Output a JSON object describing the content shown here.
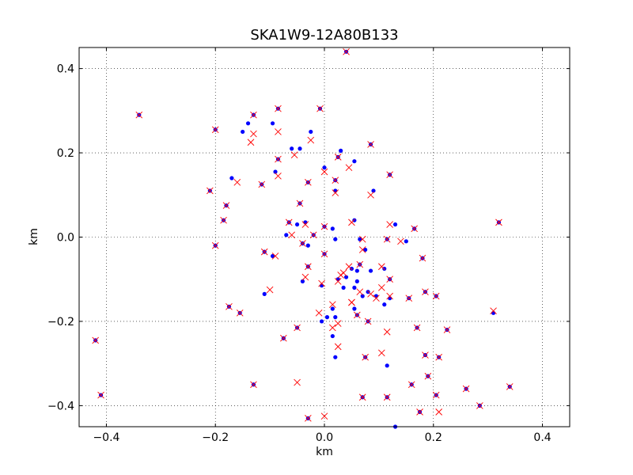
{
  "chart_data": {
    "type": "scatter",
    "title": "SKA1W9-12A80B133",
    "xlabel": "km",
    "ylabel": "km",
    "xlim": [
      -0.45,
      0.45
    ],
    "ylim": [
      -0.45,
      0.45
    ],
    "xticks": [
      "−0.4",
      "−0.2",
      "0.0",
      "0.2",
      "0.4"
    ],
    "yticks": [
      "0.4",
      "0.2",
      "0.0",
      "−0.2",
      "−0.4"
    ],
    "xtick_values": [
      -0.4,
      -0.2,
      0.0,
      0.2,
      0.4
    ],
    "ytick_values": [
      0.4,
      0.2,
      0.0,
      -0.2,
      -0.4
    ],
    "grid": true,
    "colors": {
      "series_a": "#0000ff",
      "series_b": "#ff0000",
      "axes": "#000000"
    },
    "series": [
      {
        "marker": "dot",
        "color": "#0000ff",
        "points": [
          [
            0.04,
            0.44
          ],
          [
            -0.34,
            0.29
          ],
          [
            -0.13,
            0.29
          ],
          [
            -0.085,
            0.305
          ],
          [
            -0.008,
            0.305
          ],
          [
            -0.2,
            0.255
          ],
          [
            -0.15,
            0.25
          ],
          [
            -0.14,
            0.27
          ],
          [
            -0.095,
            0.27
          ],
          [
            -0.025,
            0.25
          ],
          [
            -0.06,
            0.21
          ],
          [
            -0.045,
            0.21
          ],
          [
            0.03,
            0.205
          ],
          [
            0.085,
            0.22
          ],
          [
            -0.085,
            0.185
          ],
          [
            0.055,
            0.18
          ],
          [
            -0.09,
            0.155
          ],
          [
            0.0,
            0.165
          ],
          [
            0.025,
            0.19
          ],
          [
            0.12,
            0.148
          ],
          [
            -0.17,
            0.14
          ],
          [
            0.02,
            0.135
          ],
          [
            -0.115,
            0.125
          ],
          [
            -0.03,
            0.13
          ],
          [
            -0.21,
            0.11
          ],
          [
            0.02,
            0.11
          ],
          [
            0.09,
            0.11
          ],
          [
            -0.18,
            0.075
          ],
          [
            -0.045,
            0.08
          ],
          [
            -0.185,
            0.04
          ],
          [
            -0.065,
            0.035
          ],
          [
            -0.035,
            0.035
          ],
          [
            0.055,
            0.04
          ],
          [
            -0.05,
            0.03
          ],
          [
            0.0,
            0.025
          ],
          [
            0.015,
            0.02
          ],
          [
            0.13,
            0.03
          ],
          [
            0.165,
            0.02
          ],
          [
            -0.07,
            0.005
          ],
          [
            -0.02,
            0.005
          ],
          [
            0.02,
            -0.005
          ],
          [
            0.065,
            -0.005
          ],
          [
            0.115,
            -0.005
          ],
          [
            0.15,
            -0.01
          ],
          [
            -0.2,
            -0.02
          ],
          [
            -0.04,
            -0.015
          ],
          [
            -0.03,
            -0.02
          ],
          [
            0.075,
            -0.03
          ],
          [
            -0.11,
            -0.035
          ],
          [
            -0.095,
            -0.045
          ],
          [
            0.0,
            -0.04
          ],
          [
            0.18,
            -0.05
          ],
          [
            -0.03,
            -0.07
          ],
          [
            0.065,
            -0.065
          ],
          [
            0.05,
            -0.075
          ],
          [
            0.06,
            -0.08
          ],
          [
            0.085,
            -0.08
          ],
          [
            0.11,
            -0.075
          ],
          [
            0.04,
            -0.095
          ],
          [
            -0.04,
            -0.105
          ],
          [
            0.025,
            -0.1
          ],
          [
            0.06,
            -0.105
          ],
          [
            0.12,
            -0.1
          ],
          [
            -0.005,
            -0.115
          ],
          [
            0.035,
            -0.12
          ],
          [
            0.055,
            -0.12
          ],
          [
            0.08,
            -0.13
          ],
          [
            0.07,
            -0.14
          ],
          [
            0.095,
            -0.14
          ],
          [
            0.12,
            -0.145
          ],
          [
            0.155,
            -0.145
          ],
          [
            -0.11,
            -0.135
          ],
          [
            0.185,
            -0.13
          ],
          [
            0.205,
            -0.14
          ],
          [
            0.11,
            -0.16
          ],
          [
            -0.175,
            -0.165
          ],
          [
            0.055,
            -0.17
          ],
          [
            0.015,
            -0.17
          ],
          [
            0.31,
            -0.18
          ],
          [
            -0.155,
            -0.18
          ],
          [
            0.06,
            -0.185
          ],
          [
            0.08,
            -0.2
          ],
          [
            -0.005,
            -0.2
          ],
          [
            0.005,
            -0.19
          ],
          [
            0.02,
            -0.19
          ],
          [
            0.17,
            -0.215
          ],
          [
            -0.05,
            -0.215
          ],
          [
            0.225,
            -0.22
          ],
          [
            0.015,
            -0.235
          ],
          [
            -0.075,
            -0.24
          ],
          [
            -0.42,
            -0.245
          ],
          [
            0.075,
            -0.285
          ],
          [
            0.02,
            -0.285
          ],
          [
            0.185,
            -0.28
          ],
          [
            0.21,
            -0.285
          ],
          [
            0.115,
            -0.305
          ],
          [
            0.32,
            0.035
          ],
          [
            -0.13,
            -0.35
          ],
          [
            0.16,
            -0.35
          ],
          [
            0.19,
            -0.33
          ],
          [
            0.26,
            -0.36
          ],
          [
            0.34,
            -0.355
          ],
          [
            -0.41,
            -0.375
          ],
          [
            0.07,
            -0.38
          ],
          [
            0.115,
            -0.38
          ],
          [
            0.205,
            -0.375
          ],
          [
            0.285,
            -0.4
          ],
          [
            0.175,
            -0.415
          ],
          [
            -0.03,
            -0.43
          ],
          [
            0.13,
            -0.45
          ]
        ]
      },
      {
        "marker": "x",
        "color": "#ff0000",
        "points": [
          [
            0.04,
            0.44
          ],
          [
            -0.34,
            0.29
          ],
          [
            -0.13,
            0.29
          ],
          [
            -0.085,
            0.305
          ],
          [
            -0.008,
            0.305
          ],
          [
            -0.2,
            0.255
          ],
          [
            -0.13,
            0.245
          ],
          [
            -0.135,
            0.225
          ],
          [
            -0.085,
            0.25
          ],
          [
            -0.025,
            0.23
          ],
          [
            -0.055,
            0.195
          ],
          [
            0.085,
            0.22
          ],
          [
            0.025,
            0.19
          ],
          [
            0.045,
            0.165
          ],
          [
            -0.085,
            0.185
          ],
          [
            -0.085,
            0.145
          ],
          [
            0.0,
            0.155
          ],
          [
            0.12,
            0.148
          ],
          [
            -0.16,
            0.13
          ],
          [
            -0.115,
            0.125
          ],
          [
            -0.03,
            0.13
          ],
          [
            0.02,
            0.135
          ],
          [
            -0.21,
            0.11
          ],
          [
            0.02,
            0.105
          ],
          [
            0.085,
            0.1
          ],
          [
            -0.18,
            0.075
          ],
          [
            -0.045,
            0.08
          ],
          [
            -0.185,
            0.04
          ],
          [
            -0.065,
            0.035
          ],
          [
            -0.035,
            0.03
          ],
          [
            0.05,
            0.035
          ],
          [
            0.0,
            0.025
          ],
          [
            0.12,
            0.03
          ],
          [
            0.165,
            0.02
          ],
          [
            -0.06,
            0.005
          ],
          [
            -0.02,
            0.005
          ],
          [
            0.07,
            -0.005
          ],
          [
            0.115,
            -0.005
          ],
          [
            0.14,
            -0.01
          ],
          [
            -0.2,
            -0.02
          ],
          [
            -0.04,
            -0.015
          ],
          [
            0.07,
            -0.03
          ],
          [
            -0.11,
            -0.035
          ],
          [
            -0.09,
            -0.045
          ],
          [
            0.0,
            -0.04
          ],
          [
            0.18,
            -0.05
          ],
          [
            -0.03,
            -0.07
          ],
          [
            0.065,
            -0.065
          ],
          [
            0.045,
            -0.07
          ],
          [
            0.105,
            -0.07
          ],
          [
            0.035,
            -0.085
          ],
          [
            0.025,
            -0.105
          ],
          [
            0.03,
            -0.09
          ],
          [
            -0.035,
            -0.095
          ],
          [
            0.12,
            -0.1
          ],
          [
            -0.005,
            -0.11
          ],
          [
            0.105,
            -0.12
          ],
          [
            0.05,
            -0.155
          ],
          [
            0.065,
            -0.13
          ],
          [
            0.085,
            -0.135
          ],
          [
            0.095,
            -0.145
          ],
          [
            0.12,
            -0.14
          ],
          [
            0.155,
            -0.145
          ],
          [
            -0.1,
            -0.125
          ],
          [
            0.185,
            -0.13
          ],
          [
            0.205,
            -0.14
          ],
          [
            0.015,
            -0.16
          ],
          [
            0.05,
            -0.155
          ],
          [
            -0.175,
            -0.165
          ],
          [
            -0.01,
            -0.18
          ],
          [
            0.31,
            -0.175
          ],
          [
            -0.155,
            -0.18
          ],
          [
            0.06,
            -0.185
          ],
          [
            0.08,
            -0.2
          ],
          [
            0.015,
            -0.215
          ],
          [
            0.025,
            -0.205
          ],
          [
            0.17,
            -0.215
          ],
          [
            -0.05,
            -0.215
          ],
          [
            0.225,
            -0.22
          ],
          [
            0.115,
            -0.225
          ],
          [
            -0.075,
            -0.24
          ],
          [
            0.025,
            -0.26
          ],
          [
            -0.42,
            -0.245
          ],
          [
            0.075,
            -0.285
          ],
          [
            0.105,
            -0.275
          ],
          [
            0.185,
            -0.28
          ],
          [
            0.21,
            -0.285
          ],
          [
            0.32,
            0.035
          ],
          [
            -0.05,
            -0.345
          ],
          [
            -0.13,
            -0.35
          ],
          [
            0.16,
            -0.35
          ],
          [
            0.19,
            -0.33
          ],
          [
            0.26,
            -0.36
          ],
          [
            0.34,
            -0.355
          ],
          [
            -0.41,
            -0.375
          ],
          [
            0.07,
            -0.38
          ],
          [
            0.115,
            -0.38
          ],
          [
            0.205,
            -0.375
          ],
          [
            0.285,
            -0.4
          ],
          [
            0.21,
            -0.415
          ],
          [
            0.175,
            -0.415
          ],
          [
            0.0,
            -0.425
          ],
          [
            -0.03,
            -0.43
          ]
        ]
      }
    ]
  }
}
